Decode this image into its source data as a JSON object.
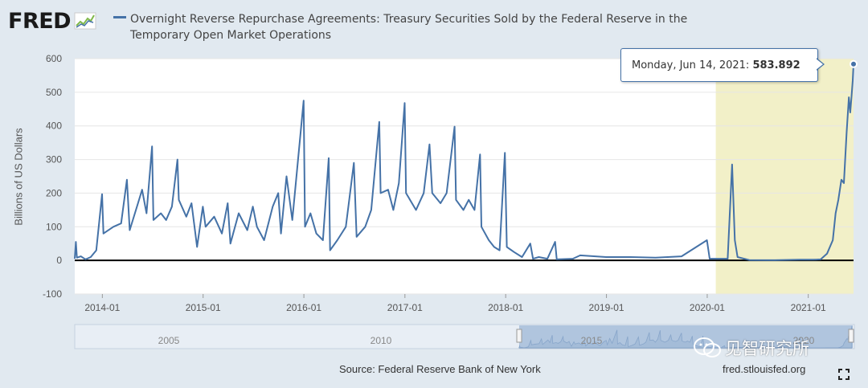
{
  "header": {
    "logo_text": "FRED",
    "series_title": "Overnight Reverse Repurchase Agreements: Treasury Securities Sold by the Federal Reserve in the Temporary Open Market Operations"
  },
  "tooltip": {
    "date_label": "Monday, Jun 14, 2021:",
    "value_label": "583.892"
  },
  "footer": {
    "source": "Source: Federal Reserve Bank of New York",
    "site": "fred.stlouisfed.org"
  },
  "watermark": {
    "text": "见智研究所"
  },
  "navigator": {
    "labels": [
      "2005",
      "2010",
      "2015",
      "2020"
    ]
  },
  "colors": {
    "series": "#4572a7",
    "plot_bg": "#ffffff",
    "page_bg": "#e1e9f0",
    "recession_band": "#f2f0c8",
    "navigator_window": "#9db7d6"
  },
  "icons": [
    "fred-graph-icon",
    "fullscreen-icon",
    "wechat-icon"
  ],
  "chart_data": {
    "type": "line",
    "title": "Overnight Reverse Repurchase Agreements: Treasury Securities Sold by the Federal Reserve in the Temporary Open Market Operations",
    "ylabel": "Billions of US Dollars",
    "xlabel": "",
    "ylim": [
      -100,
      600
    ],
    "xlim": [
      "2013-09-23",
      "2021-06-14"
    ],
    "y_ticks": [
      -100,
      0,
      100,
      200,
      300,
      400,
      500,
      600
    ],
    "x_ticks": [
      "2014-01",
      "2015-01",
      "2016-01",
      "2017-01",
      "2018-01",
      "2019-01",
      "2020-01",
      "2021-01"
    ],
    "shaded_region": {
      "label": "",
      "start": "2020-02-01",
      "end": "2021-06-14"
    },
    "grid": "horizontal",
    "series": [
      {
        "name": "",
        "points": [
          [
            "2013-09-23",
            5
          ],
          [
            "2013-09-27",
            55
          ],
          [
            "2013-10-01",
            8
          ],
          [
            "2013-10-15",
            12
          ],
          [
            "2013-11-01",
            3
          ],
          [
            "2013-11-20",
            10
          ],
          [
            "2013-12-10",
            30
          ],
          [
            "2013-12-31",
            197
          ],
          [
            "2014-01-05",
            80
          ],
          [
            "2014-02-10",
            100
          ],
          [
            "2014-03-10",
            110
          ],
          [
            "2014-03-31",
            240
          ],
          [
            "2014-04-10",
            90
          ],
          [
            "2014-05-10",
            170
          ],
          [
            "2014-05-25",
            210
          ],
          [
            "2014-06-10",
            140
          ],
          [
            "2014-06-30",
            339
          ],
          [
            "2014-07-05",
            120
          ],
          [
            "2014-08-01",
            140
          ],
          [
            "2014-08-20",
            120
          ],
          [
            "2014-09-10",
            160
          ],
          [
            "2014-09-30",
            300
          ],
          [
            "2014-10-05",
            180
          ],
          [
            "2014-11-01",
            130
          ],
          [
            "2014-11-20",
            170
          ],
          [
            "2014-12-10",
            40
          ],
          [
            "2014-12-31",
            160
          ],
          [
            "2015-01-10",
            100
          ],
          [
            "2015-02-10",
            130
          ],
          [
            "2015-03-10",
            80
          ],
          [
            "2015-03-31",
            170
          ],
          [
            "2015-04-10",
            50
          ],
          [
            "2015-05-10",
            140
          ],
          [
            "2015-06-10",
            90
          ],
          [
            "2015-06-30",
            160
          ],
          [
            "2015-07-15",
            100
          ],
          [
            "2015-08-10",
            60
          ],
          [
            "2015-09-10",
            160
          ],
          [
            "2015-09-30",
            200
          ],
          [
            "2015-10-10",
            80
          ],
          [
            "2015-10-30",
            250
          ],
          [
            "2015-11-20",
            120
          ],
          [
            "2015-12-31",
            475
          ],
          [
            "2016-01-05",
            100
          ],
          [
            "2016-01-25",
            140
          ],
          [
            "2016-02-15",
            80
          ],
          [
            "2016-03-10",
            60
          ],
          [
            "2016-03-31",
            304
          ],
          [
            "2016-04-05",
            30
          ],
          [
            "2016-05-01",
            60
          ],
          [
            "2016-06-01",
            100
          ],
          [
            "2016-06-30",
            290
          ],
          [
            "2016-07-10",
            70
          ],
          [
            "2016-08-10",
            100
          ],
          [
            "2016-09-01",
            150
          ],
          [
            "2016-09-30",
            412
          ],
          [
            "2016-10-05",
            200
          ],
          [
            "2016-11-01",
            210
          ],
          [
            "2016-11-20",
            150
          ],
          [
            "2016-12-10",
            230
          ],
          [
            "2016-12-31",
            468
          ],
          [
            "2017-01-05",
            200
          ],
          [
            "2017-02-10",
            150
          ],
          [
            "2017-03-10",
            200
          ],
          [
            "2017-03-31",
            345
          ],
          [
            "2017-04-10",
            200
          ],
          [
            "2017-05-10",
            170
          ],
          [
            "2017-06-01",
            200
          ],
          [
            "2017-06-30",
            398
          ],
          [
            "2017-07-05",
            180
          ],
          [
            "2017-08-01",
            150
          ],
          [
            "2017-08-20",
            180
          ],
          [
            "2017-09-10",
            150
          ],
          [
            "2017-09-30",
            315
          ],
          [
            "2017-10-05",
            100
          ],
          [
            "2017-11-01",
            60
          ],
          [
            "2017-11-20",
            40
          ],
          [
            "2017-12-10",
            30
          ],
          [
            "2017-12-29",
            320
          ],
          [
            "2018-01-05",
            40
          ],
          [
            "2018-01-31",
            25
          ],
          [
            "2018-03-01",
            10
          ],
          [
            "2018-03-31",
            50
          ],
          [
            "2018-04-10",
            5
          ],
          [
            "2018-05-01",
            10
          ],
          [
            "2018-06-01",
            5
          ],
          [
            "2018-06-29",
            55
          ],
          [
            "2018-07-05",
            3
          ],
          [
            "2018-09-01",
            5
          ],
          [
            "2018-09-28",
            15
          ],
          [
            "2018-12-31",
            10
          ],
          [
            "2019-03-29",
            10
          ],
          [
            "2019-06-28",
            8
          ],
          [
            "2019-09-30",
            12
          ],
          [
            "2019-12-31",
            60
          ],
          [
            "2020-01-10",
            5
          ],
          [
            "2020-03-15",
            5
          ],
          [
            "2020-03-31",
            285
          ],
          [
            "2020-04-10",
            60
          ],
          [
            "2020-04-20",
            10
          ],
          [
            "2020-06-01",
            1
          ],
          [
            "2020-09-01",
            0.5
          ],
          [
            "2020-12-01",
            2
          ],
          [
            "2021-01-20",
            2
          ],
          [
            "2021-02-15",
            3
          ],
          [
            "2021-03-10",
            20
          ],
          [
            "2021-03-31",
            60
          ],
          [
            "2021-04-10",
            140
          ],
          [
            "2021-04-20",
            180
          ],
          [
            "2021-05-01",
            240
          ],
          [
            "2021-05-10",
            230
          ],
          [
            "2021-05-20",
            380
          ],
          [
            "2021-05-28",
            485
          ],
          [
            "2021-06-02",
            440
          ],
          [
            "2021-06-07",
            490
          ],
          [
            "2021-06-11",
            535
          ],
          [
            "2021-06-14",
            583.892
          ]
        ]
      }
    ]
  }
}
